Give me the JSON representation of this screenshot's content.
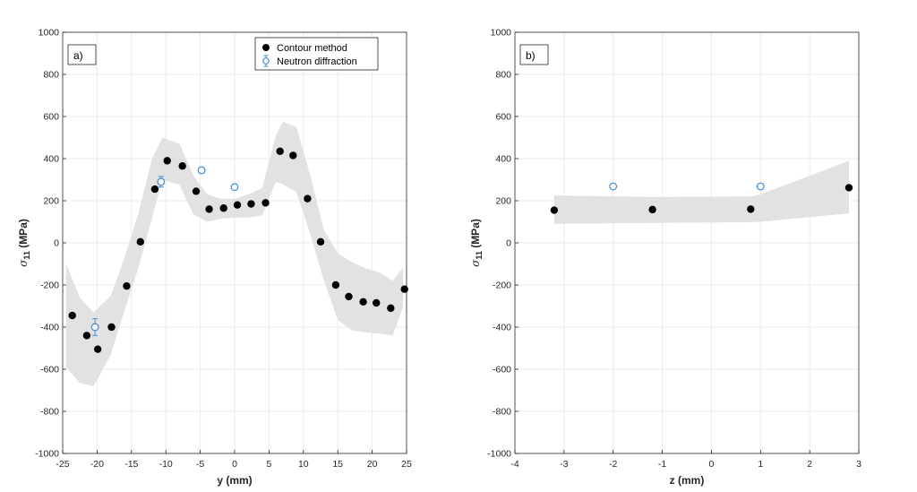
{
  "colors": {
    "band": "#e2e2e2",
    "contour": "#000000",
    "neutron": "#4a8fd4",
    "grid": "#ebebeb",
    "axis": "#262626"
  },
  "chart_data": [
    {
      "type": "scatter",
      "panel_label": "a)",
      "xlabel": "y (mm)",
      "ylabel_symbol": "σ",
      "ylabel_sub": "11",
      "ylabel_unit": " (MPa)",
      "xlim": [
        -25,
        25
      ],
      "ylim": [
        -1000,
        1000
      ],
      "xticks": [
        -25,
        -20,
        -15,
        -10,
        -5,
        0,
        5,
        10,
        15,
        20,
        25
      ],
      "yticks": [
        -1000,
        -800,
        -600,
        -400,
        -200,
        0,
        200,
        400,
        600,
        800,
        1000
      ],
      "grid": true,
      "legend": {
        "placement": "top-right",
        "entries": [
          "Contour method",
          "Neutron diffraction"
        ]
      },
      "series": [
        {
          "name": "Contour method",
          "marker": "filled-circle",
          "x": [
            -23.6,
            -21.5,
            -19.9,
            -17.9,
            -15.7,
            -13.7,
            -11.6,
            -9.8,
            -7.6,
            -5.6,
            -3.7,
            -1.6,
            0.4,
            2.4,
            4.5,
            6.6,
            8.5,
            10.6,
            12.5,
            14.7,
            16.6,
            18.7,
            20.6,
            22.7,
            24.7
          ],
          "y": [
            -345,
            -440,
            -505,
            -400,
            -205,
            5,
            255,
            390,
            365,
            245,
            160,
            165,
            180,
            185,
            190,
            435,
            415,
            210,
            5,
            -200,
            -255,
            -280,
            -285,
            -310,
            -220
          ]
        },
        {
          "name": "Neutron diffraction",
          "marker": "open-circle-errorbar",
          "x": [
            -20.3,
            -10.7,
            -4.8,
            0.0
          ],
          "y": [
            -400,
            290,
            345,
            265
          ],
          "err": [
            40,
            25,
            12,
            12
          ]
        }
      ],
      "band": {
        "x": [
          -24.5,
          -22.5,
          -20.5,
          -18,
          -16,
          -14,
          -12,
          -10.5,
          -8,
          -6,
          -4,
          -2,
          0,
          2,
          4,
          6,
          7,
          9,
          11,
          13,
          15,
          17,
          19,
          21,
          23,
          24.5
        ],
        "upper": [
          -100,
          -260,
          -330,
          -250,
          -70,
          140,
          400,
          500,
          470,
          320,
          230,
          210,
          210,
          230,
          260,
          510,
          575,
          550,
          320,
          60,
          -50,
          -90,
          -120,
          -140,
          -180,
          -115
        ],
        "lower": [
          -590,
          -665,
          -680,
          -530,
          -320,
          -120,
          120,
          300,
          275,
          135,
          100,
          115,
          120,
          120,
          130,
          290,
          280,
          240,
          40,
          -180,
          -365,
          -415,
          -425,
          -430,
          -440,
          -300
        ]
      }
    },
    {
      "type": "scatter",
      "panel_label": "b)",
      "xlabel": "z (mm)",
      "ylabel_symbol": "σ",
      "ylabel_sub": "11",
      "ylabel_unit": " (MPa)",
      "xlim": [
        -4,
        3
      ],
      "ylim": [
        -1000,
        1000
      ],
      "xticks": [
        -4,
        -3,
        -2,
        -1,
        0,
        1,
        2,
        3
      ],
      "yticks": [
        -1000,
        -800,
        -600,
        -400,
        -200,
        0,
        200,
        400,
        600,
        800,
        1000
      ],
      "grid": true,
      "series": [
        {
          "name": "Contour method",
          "marker": "filled-circle",
          "x": [
            -3.2,
            -1.2,
            0.8,
            2.8
          ],
          "y": [
            155,
            158,
            160,
            262
          ]
        },
        {
          "name": "Neutron diffraction",
          "marker": "open-circle-errorbar",
          "x": [
            -2.0,
            1.0
          ],
          "y": [
            268,
            268
          ],
          "err": [
            12,
            12
          ]
        }
      ],
      "band": {
        "x": [
          -3.2,
          -1.2,
          0.8,
          1.0,
          2.8
        ],
        "upper": [
          225,
          218,
          220,
          230,
          390
        ],
        "lower": [
          90,
          95,
          98,
          100,
          140
        ]
      }
    }
  ]
}
